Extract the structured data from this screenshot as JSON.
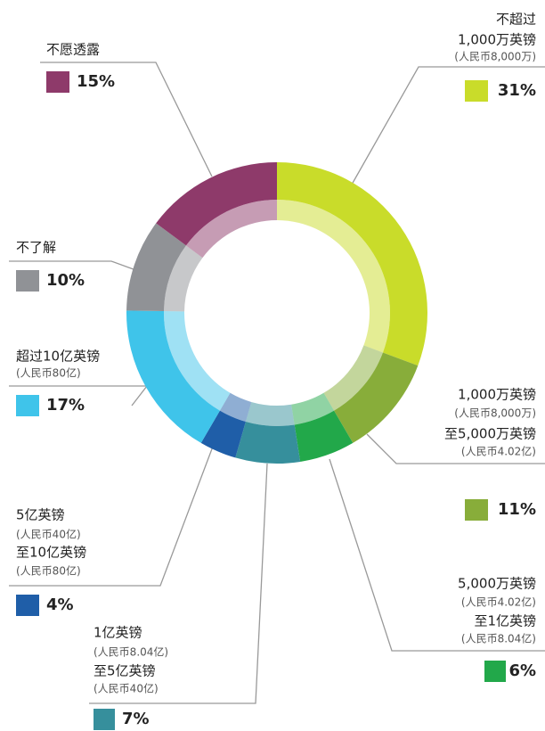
{
  "chart_data": {
    "type": "pie",
    "donut": true,
    "categories": [
      [
        "不超过",
        "1,000万英镑",
        "(人民币8,000万)"
      ],
      [
        "1,000万英镑",
        "(人民币8,000万)",
        "至5,000万英镑",
        "(人民币4.02亿)"
      ],
      [
        "5,000万英镑",
        "(人民币4.02亿)",
        "至1亿英镑",
        "(人民币8.04亿)"
      ],
      [
        "1亿英镑",
        "(人民币8.04亿)",
        "至5亿英镑",
        "(人民币40亿)"
      ],
      [
        "5亿英镑",
        "(人民币40亿)",
        "至10亿英镑",
        "(人民币80亿)"
      ],
      [
        "超过10亿英镑",
        "(人民币80亿)"
      ],
      [
        "不了解"
      ],
      [
        "不愿透露"
      ]
    ],
    "values": [
      31,
      11,
      6,
      7,
      4,
      17,
      10,
      15
    ],
    "value_labels": [
      "31%",
      "11%",
      "6%",
      "7%",
      "4%",
      "17%",
      "10%",
      "15%"
    ],
    "colors": [
      "#c9dc2a",
      "#88ad3a",
      "#22a84a",
      "#368f9c",
      "#1f5ea8",
      "#3fc4ea",
      "#909296",
      "#8e3a6a"
    ]
  }
}
